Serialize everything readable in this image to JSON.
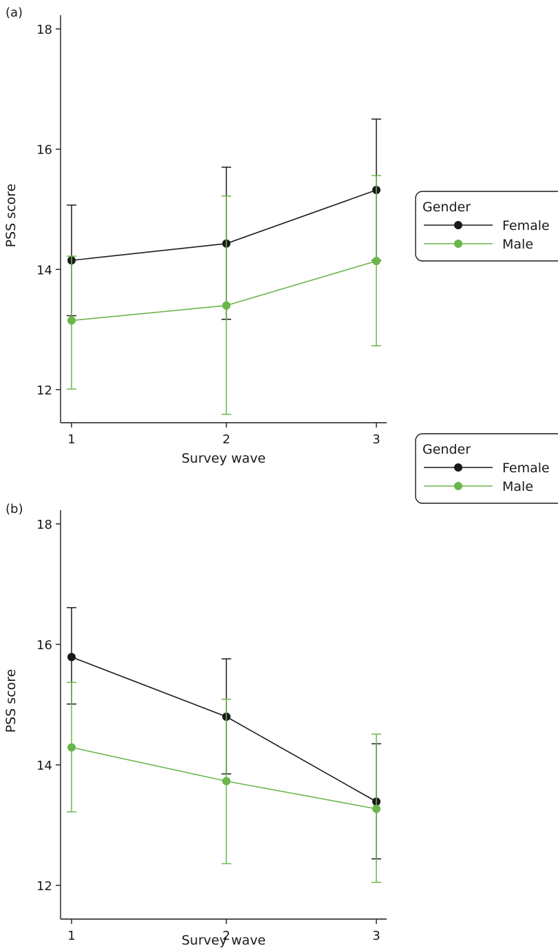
{
  "chart_data": [
    {
      "type": "line",
      "panel_label": "(a)",
      "xlabel": "Survey wave",
      "ylabel": "PSS score",
      "categories": [
        "1",
        "2",
        "3"
      ],
      "x": [
        1,
        2,
        3
      ],
      "xlim": [
        0.93,
        3.07
      ],
      "ylim": [
        11.5,
        18.2
      ],
      "yticks": [
        12,
        14,
        16,
        18
      ],
      "grid": false,
      "legend_title": "Gender",
      "legend_position": "right",
      "series": [
        {
          "name": "Female",
          "color": "#1a1a1a",
          "values": [
            14.15,
            14.43,
            15.32
          ],
          "err_low": [
            13.23,
            13.17,
            14.15
          ],
          "err_high": [
            15.07,
            15.7,
            16.5
          ]
        },
        {
          "name": "Male",
          "color": "#6ab64c",
          "values": [
            13.15,
            13.4,
            14.14
          ],
          "err_low": [
            12.01,
            11.59,
            12.73
          ],
          "err_high": [
            14.22,
            15.22,
            15.56
          ]
        }
      ]
    },
    {
      "type": "line",
      "panel_label": "(b)",
      "xlabel": "Survey wave",
      "ylabel": "PSS score",
      "categories": [
        "1",
        "2",
        "3"
      ],
      "x": [
        1,
        2,
        3
      ],
      "xlim": [
        0.93,
        3.07
      ],
      "ylim": [
        11.5,
        18.2
      ],
      "yticks": [
        12,
        14,
        16,
        18
      ],
      "grid": false,
      "legend_title": "Gender",
      "legend_position": "right",
      "series": [
        {
          "name": "Female",
          "color": "#1a1a1a",
          "values": [
            15.79,
            14.8,
            13.39
          ],
          "err_low": [
            15.01,
            13.85,
            12.44
          ],
          "err_high": [
            16.61,
            15.76,
            14.35
          ]
        },
        {
          "name": "Male",
          "color": "#6ab64c",
          "values": [
            14.29,
            13.73,
            13.27
          ],
          "err_low": [
            13.22,
            12.36,
            12.05
          ],
          "err_high": [
            15.37,
            15.09,
            14.51
          ]
        }
      ]
    }
  ]
}
